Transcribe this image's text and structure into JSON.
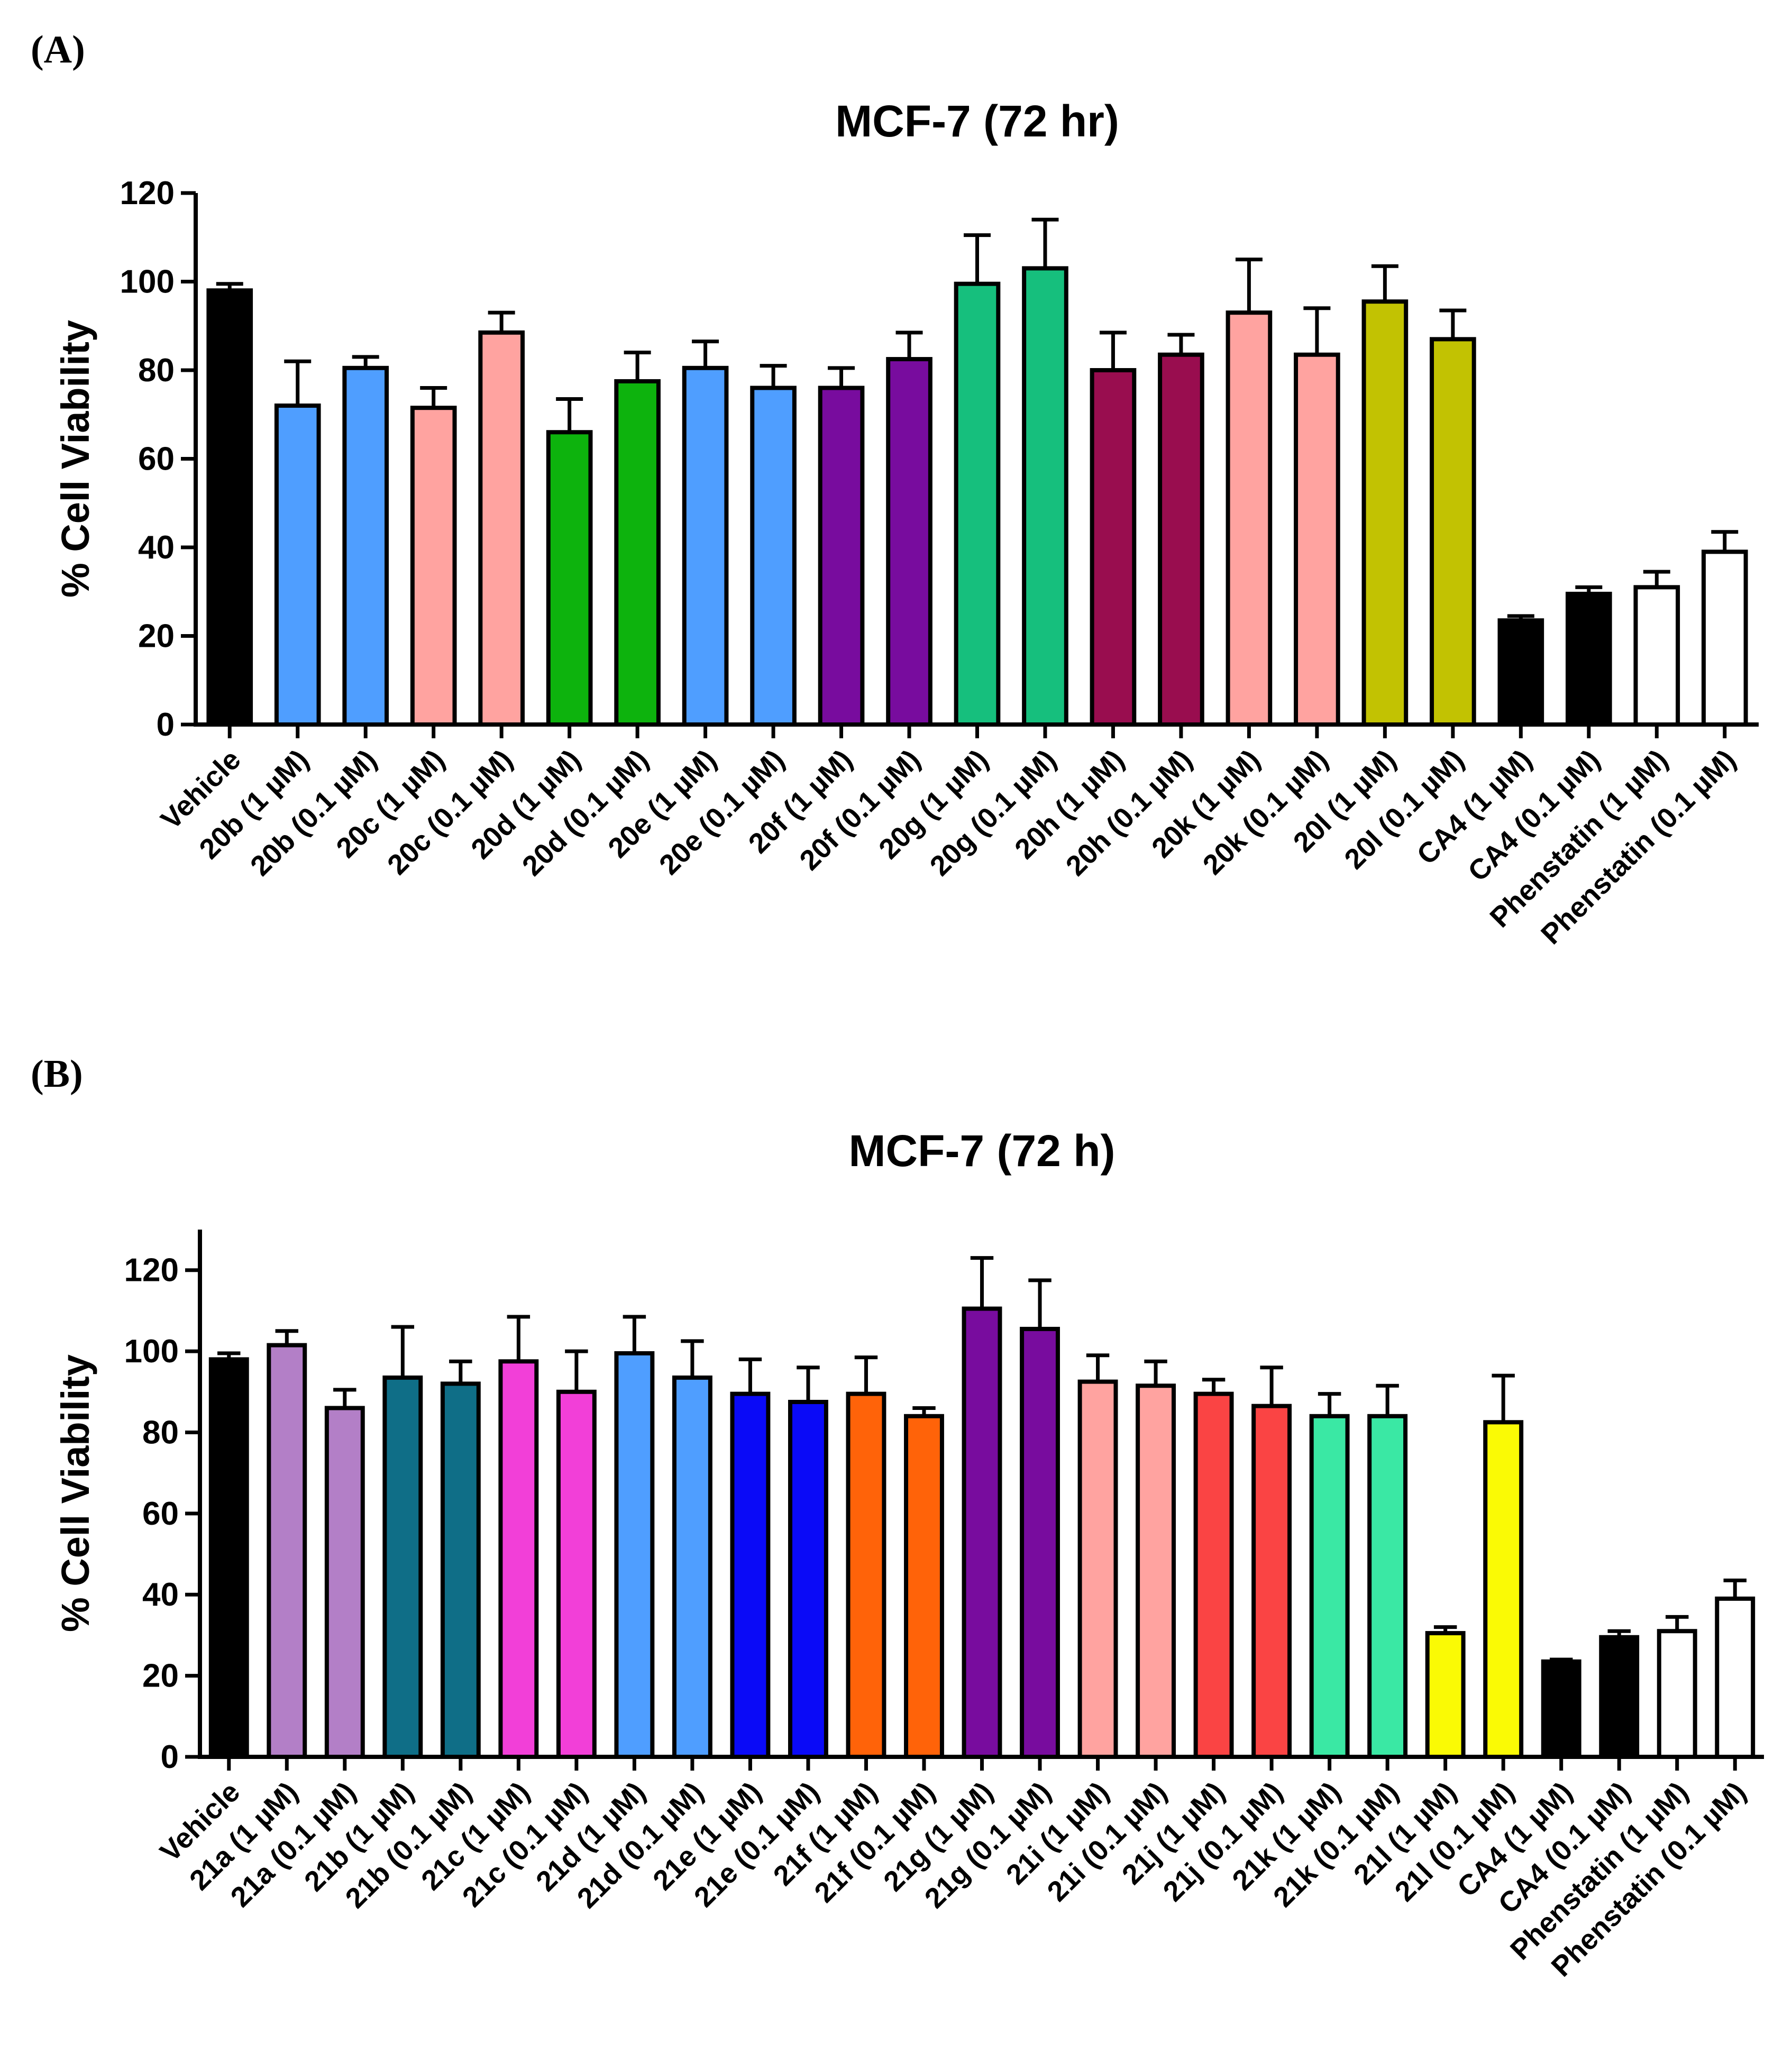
{
  "panels": {
    "a": {
      "label": "(A)"
    },
    "b": {
      "label": "(B)"
    }
  },
  "chart_data": [
    {
      "type": "bar",
      "title": "MCF-7 (72 hr)",
      "xlabel": "",
      "ylabel": "% Cell Viability",
      "ylim": [
        0,
        120
      ],
      "yticks": [
        0,
        20,
        40,
        60,
        80,
        100,
        120
      ],
      "categories": [
        "Vehicle",
        "20b (1 µM)",
        "20b (0.1 µM)",
        "20c (1 µM)",
        "20c (0.1 µM)",
        "20d (1 µM)",
        "20d (0.1 µM)",
        "20e (1 µM)",
        "20e (0.1 µM)",
        "20f (1 µM)",
        "20f (0.1 µM)",
        "20g (1 µM)",
        "20g (0.1 µM)",
        "20h (1 µM)",
        "20h (0.1 µM)",
        "20k (1 µM)",
        "20k (0.1 µM)",
        "20l (1 µM)",
        "20l (0.1 µM)",
        "CA4 (1 µM)",
        "CA4 (0.1 µM)",
        "Phenstatin (1 µM)",
        "Phenstatin (0.1 µM)"
      ],
      "values": [
        98,
        72,
        80.5,
        71.5,
        88.5,
        66,
        77.5,
        80.5,
        76,
        76,
        82.5,
        99.5,
        103,
        80,
        83.5,
        93,
        83.5,
        95.5,
        87,
        23.5,
        29.5,
        31,
        39
      ],
      "errors": [
        1.5,
        10,
        2.5,
        4.5,
        4.5,
        7.5,
        6.5,
        6,
        5,
        4.5,
        6,
        11,
        11,
        8.5,
        4.5,
        12,
        10.5,
        8,
        6.5,
        1,
        1.5,
        3.5,
        4.5
      ],
      "colors": [
        "#000000",
        "#4f9eff",
        "#4f9eff",
        "#ffa3a0",
        "#ffa3a0",
        "#0db30d",
        "#0db30d",
        "#4f9eff",
        "#4f9eff",
        "#780c9e",
        "#780c9e",
        "#16bf7d",
        "#16bf7d",
        "#990d4f",
        "#990d4f",
        "#ffa3a0",
        "#ffa3a0",
        "#c2c202",
        "#c2c202",
        "#000000",
        "#000000",
        "#ffffff",
        "#ffffff"
      ]
    },
    {
      "type": "bar",
      "title": "MCF-7 (72 h)",
      "xlabel": "",
      "ylabel": "% Cell Viability",
      "ylim": [
        0,
        130
      ],
      "yticks": [
        0,
        20,
        40,
        60,
        80,
        100,
        120
      ],
      "categories": [
        "Vehicle",
        "21a (1 µM)",
        "21a (0.1 µM)",
        "21b (1 µM)",
        "21b (0.1 µM)",
        "21c (1 µM)",
        "21c (0.1 µM)",
        "21d (1 µM)",
        "21d (0.1 µM)",
        "21e (1 µM)",
        "21e (0.1 µM)",
        "21f (1 µM)",
        "21f (0.1 µM)",
        "21g (1 µM)",
        "21g (0.1 µM)",
        "21i (1 µM)",
        "21i (0.1 µM)",
        "21j (1 µM)",
        "21j (0.1 µM)",
        "21k (1 µM)",
        "21k (0.1 µM)",
        "21l (1 µM)",
        "21l (0.1 µM)",
        "CA4 (1 µM)",
        "CA4 (0.1 µM)",
        "Phenstatin (1 µM)",
        "Phenstatin (0.1 µM)"
      ],
      "values": [
        98,
        101.5,
        86,
        93.5,
        92,
        97.5,
        90,
        99.5,
        93.5,
        89.5,
        87.5,
        89.5,
        84,
        110.5,
        105.5,
        92.5,
        91.5,
        89.5,
        86.5,
        84,
        84,
        30.5,
        82.5,
        23.5,
        29.5,
        31,
        39
      ],
      "errors": [
        1.5,
        3.5,
        4.5,
        12.5,
        5.5,
        11,
        10,
        9,
        9,
        8.5,
        8.5,
        9,
        2,
        12.5,
        12,
        6.5,
        6,
        3.5,
        9.5,
        5.5,
        7.5,
        1.5,
        11.5,
        0.5,
        1.5,
        3.5,
        4.5
      ],
      "colors": [
        "#000000",
        "#b37fc7",
        "#b37fc7",
        "#0f6e87",
        "#0f6e87",
        "#f23fd8",
        "#f23fd8",
        "#4f9eff",
        "#4f9eff",
        "#0a0af7",
        "#0a0af7",
        "#ff6309",
        "#ff6309",
        "#780c9e",
        "#780c9e",
        "#ffa3a0",
        "#ffa3a0",
        "#fa4444",
        "#fa4444",
        "#3ae8a4",
        "#3ae8a4",
        "#fafa05",
        "#fafa05",
        "#000000",
        "#000000",
        "#ffffff",
        "#ffffff"
      ]
    }
  ]
}
